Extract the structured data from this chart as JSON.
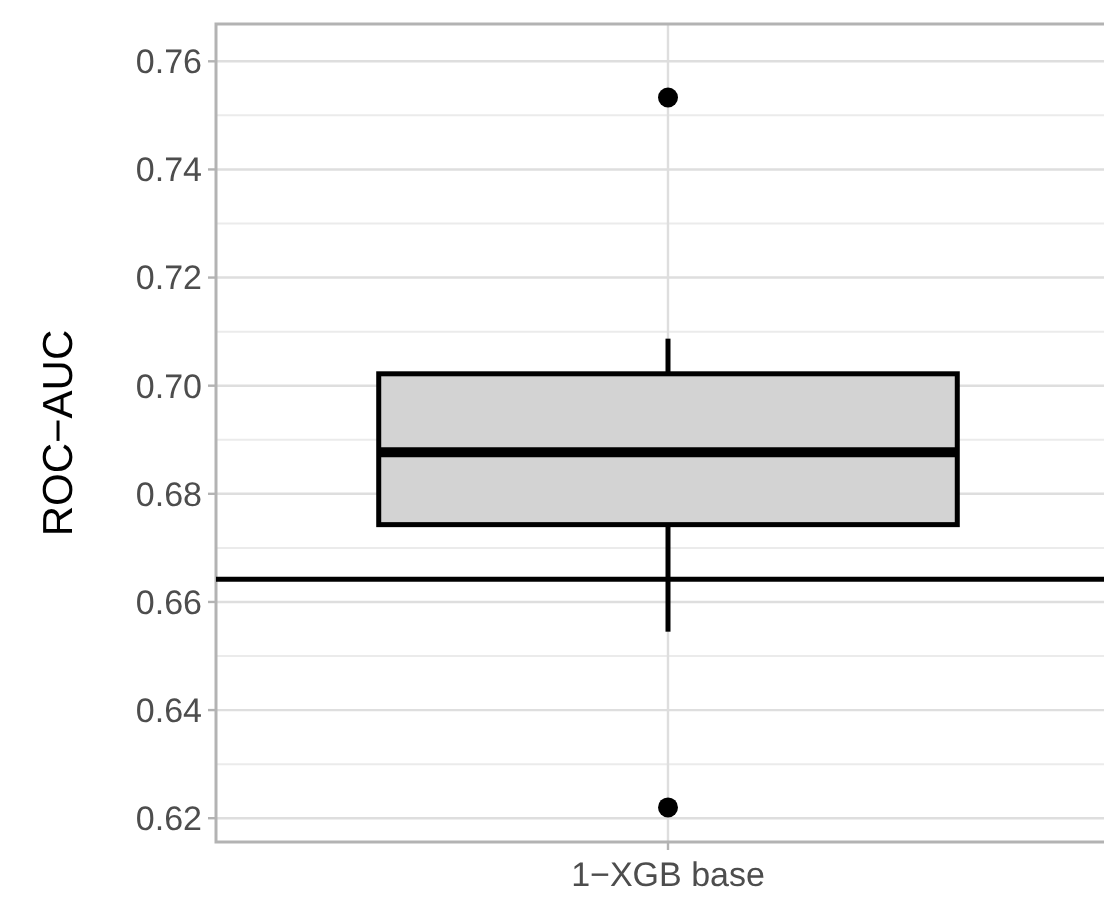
{
  "chart_data": {
    "type": "box",
    "ylabel": "ROC−AUC",
    "categories": [
      "1−XGB base"
    ],
    "boxes": [
      {
        "low": 0.6545,
        "q1": 0.6743,
        "median": 0.6877,
        "q3": 0.7022,
        "high": 0.7087,
        "outliers": [
          0.7533,
          0.622
        ]
      }
    ],
    "color": "#d3d3d3",
    "ylim": [
      0.6156,
      0.7669
    ],
    "yticks": [
      0.62,
      0.64,
      0.66,
      0.68,
      {
        "value": 0.7,
        "label": "0.70"
      },
      0.72,
      0.74,
      0.76
    ],
    "ref_lines": [
      {
        "axis": "y",
        "value": 0.6642,
        "color": "#000000"
      }
    ],
    "grid": true
  }
}
